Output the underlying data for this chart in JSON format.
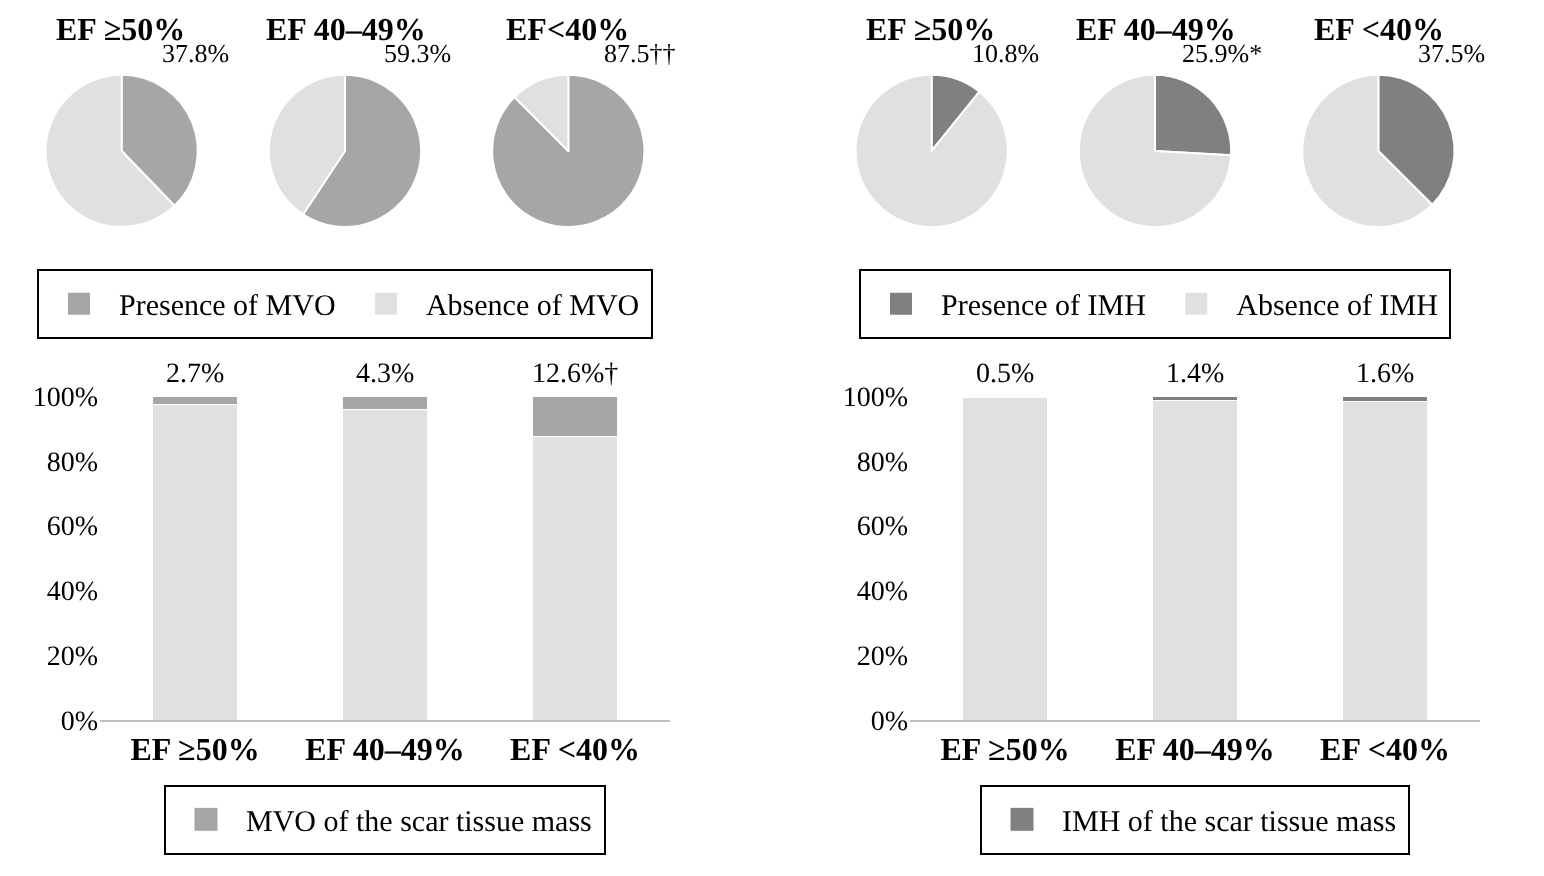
{
  "chart_data": [
    {
      "type": "pie",
      "categories": [
        "Presence of MVO",
        "Absence of MVO"
      ],
      "colors": [
        "#a6a6a6",
        "#e0e0e0"
      ],
      "legend": "bottom",
      "series": [
        {
          "name": "EF ≥50%",
          "values": [
            37.8,
            62.2
          ],
          "value_labels": [
            "37.8%",
            null
          ]
        },
        {
          "name": "EF 40–49%",
          "values": [
            59.3,
            40.7
          ],
          "value_labels": [
            "59.3%",
            null
          ]
        },
        {
          "name": "EF<40%",
          "values": [
            87.5,
            12.5
          ],
          "value_labels": [
            "87.5††",
            null
          ]
        }
      ]
    },
    {
      "type": "pie",
      "categories": [
        "Presence of IMH",
        "Absence of IMH"
      ],
      "colors": [
        "#808080",
        "#e0e0e0"
      ],
      "legend": "bottom",
      "series": [
        {
          "name": "EF ≥50%",
          "values": [
            10.8,
            89.2
          ],
          "value_labels": [
            "10.8%",
            null
          ]
        },
        {
          "name": "EF 40–49%",
          "values": [
            25.9,
            74.1
          ],
          "value_labels": [
            "25.9%*",
            null
          ]
        },
        {
          "name": "EF <40%",
          "values": [
            37.5,
            62.5
          ],
          "value_labels": [
            "37.5%",
            null
          ]
        }
      ]
    },
    {
      "type": "bar",
      "stacked": true,
      "categories": [
        "EF ≥50%",
        "EF 40–49%",
        "EF <40%"
      ],
      "ylim": [
        0,
        100
      ],
      "yticks": [
        {
          "value": 0,
          "label": "0%"
        },
        {
          "value": 20,
          "label": "20%"
        },
        {
          "value": 40,
          "label": "40%"
        },
        {
          "value": 60,
          "label": "60%"
        },
        {
          "value": 80,
          "label": "80%"
        },
        {
          "value": 100,
          "label": "100%"
        }
      ],
      "legend": "bottom",
      "series": [
        {
          "color": "#e0e0e0",
          "values": [
            97.3,
            95.7,
            87.4
          ]
        },
        {
          "name": "MVO of the scar tissue mass",
          "color": "#a6a6a6",
          "values": [
            2.7,
            4.3,
            12.6
          ],
          "value_labels": [
            "2.7%",
            "4.3%",
            "12.6%†"
          ]
        }
      ]
    },
    {
      "type": "bar",
      "stacked": true,
      "categories": [
        "EF ≥50%",
        "EF 40–49%",
        "EF <40%"
      ],
      "ylim": [
        0,
        100
      ],
      "yticks": [
        {
          "value": 0,
          "label": "0%"
        },
        {
          "value": 20,
          "label": "20%"
        },
        {
          "value": 40,
          "label": "40%"
        },
        {
          "value": 60,
          "label": "60%"
        },
        {
          "value": 80,
          "label": "80%"
        },
        {
          "value": 100,
          "label": "100%"
        }
      ],
      "legend": "bottom",
      "series": [
        {
          "color": "#e0e0e0",
          "values": [
            99.5,
            98.6,
            98.4
          ]
        },
        {
          "name": "IMH of the scar tissue mass",
          "color": "#808080",
          "values": [
            0.5,
            1.4,
            1.6
          ],
          "value_labels": [
            "0.5%",
            "1.4%",
            "1.6%"
          ]
        }
      ]
    }
  ]
}
